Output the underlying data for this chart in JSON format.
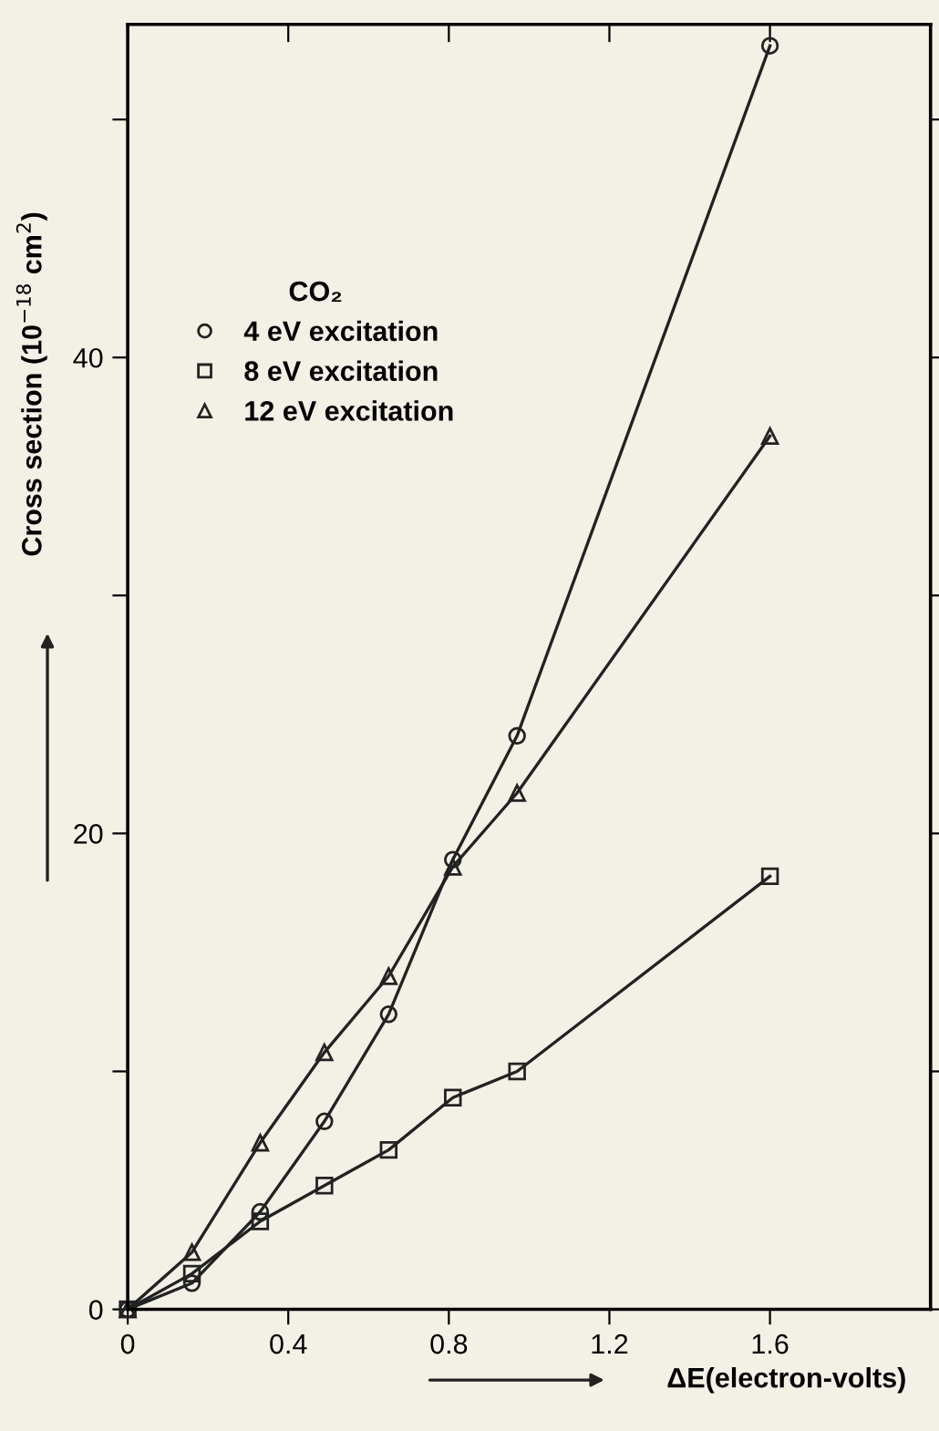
{
  "chart_data": {
    "type": "line",
    "ylabel": "Cross section (10$^{−18}$ cm$^{2}$)",
    "xlabel": "ΔE(electron-volts)",
    "legend_title": "CO₂",
    "legend": "top left",
    "series": [
      {
        "name": "4 eV excitation",
        "color": "#222222",
        "marker": "circle",
        "x": [
          0,
          0.16,
          0.33,
          0.49,
          0.65,
          0.81,
          0.97,
          1.6
        ],
        "values": [
          0,
          1.1,
          4.1,
          7.9,
          12.4,
          18.9,
          24.1,
          53.1
        ]
      },
      {
        "name": "8 eV excitation",
        "color": "#222222",
        "marker": "square",
        "x": [
          0,
          0.16,
          0.33,
          0.49,
          0.65,
          0.81,
          0.97,
          1.6
        ],
        "values": [
          0,
          1.5,
          3.7,
          5.2,
          6.7,
          8.9,
          10.0,
          18.2
        ]
      },
      {
        "name": "12 eV excitation",
        "color": "#222222",
        "marker": "triangle",
        "x": [
          0,
          0.16,
          0.33,
          0.49,
          0.65,
          0.81,
          0.97,
          1.6
        ],
        "values": [
          0,
          2.4,
          7.0,
          10.8,
          14.0,
          18.6,
          21.7,
          36.7
        ]
      }
    ],
    "xlim": [
      0,
      2.0
    ],
    "xticks": [
      0,
      0.4,
      0.8,
      1.2,
      1.6
    ],
    "ylim": [
      0,
      54
    ],
    "yticks": [
      0,
      {
        "value": 10,
        "label": null
      },
      20,
      {
        "value": 30,
        "label": null
      },
      40,
      {
        "value": 50,
        "label": null
      }
    ],
    "grid": false
  }
}
